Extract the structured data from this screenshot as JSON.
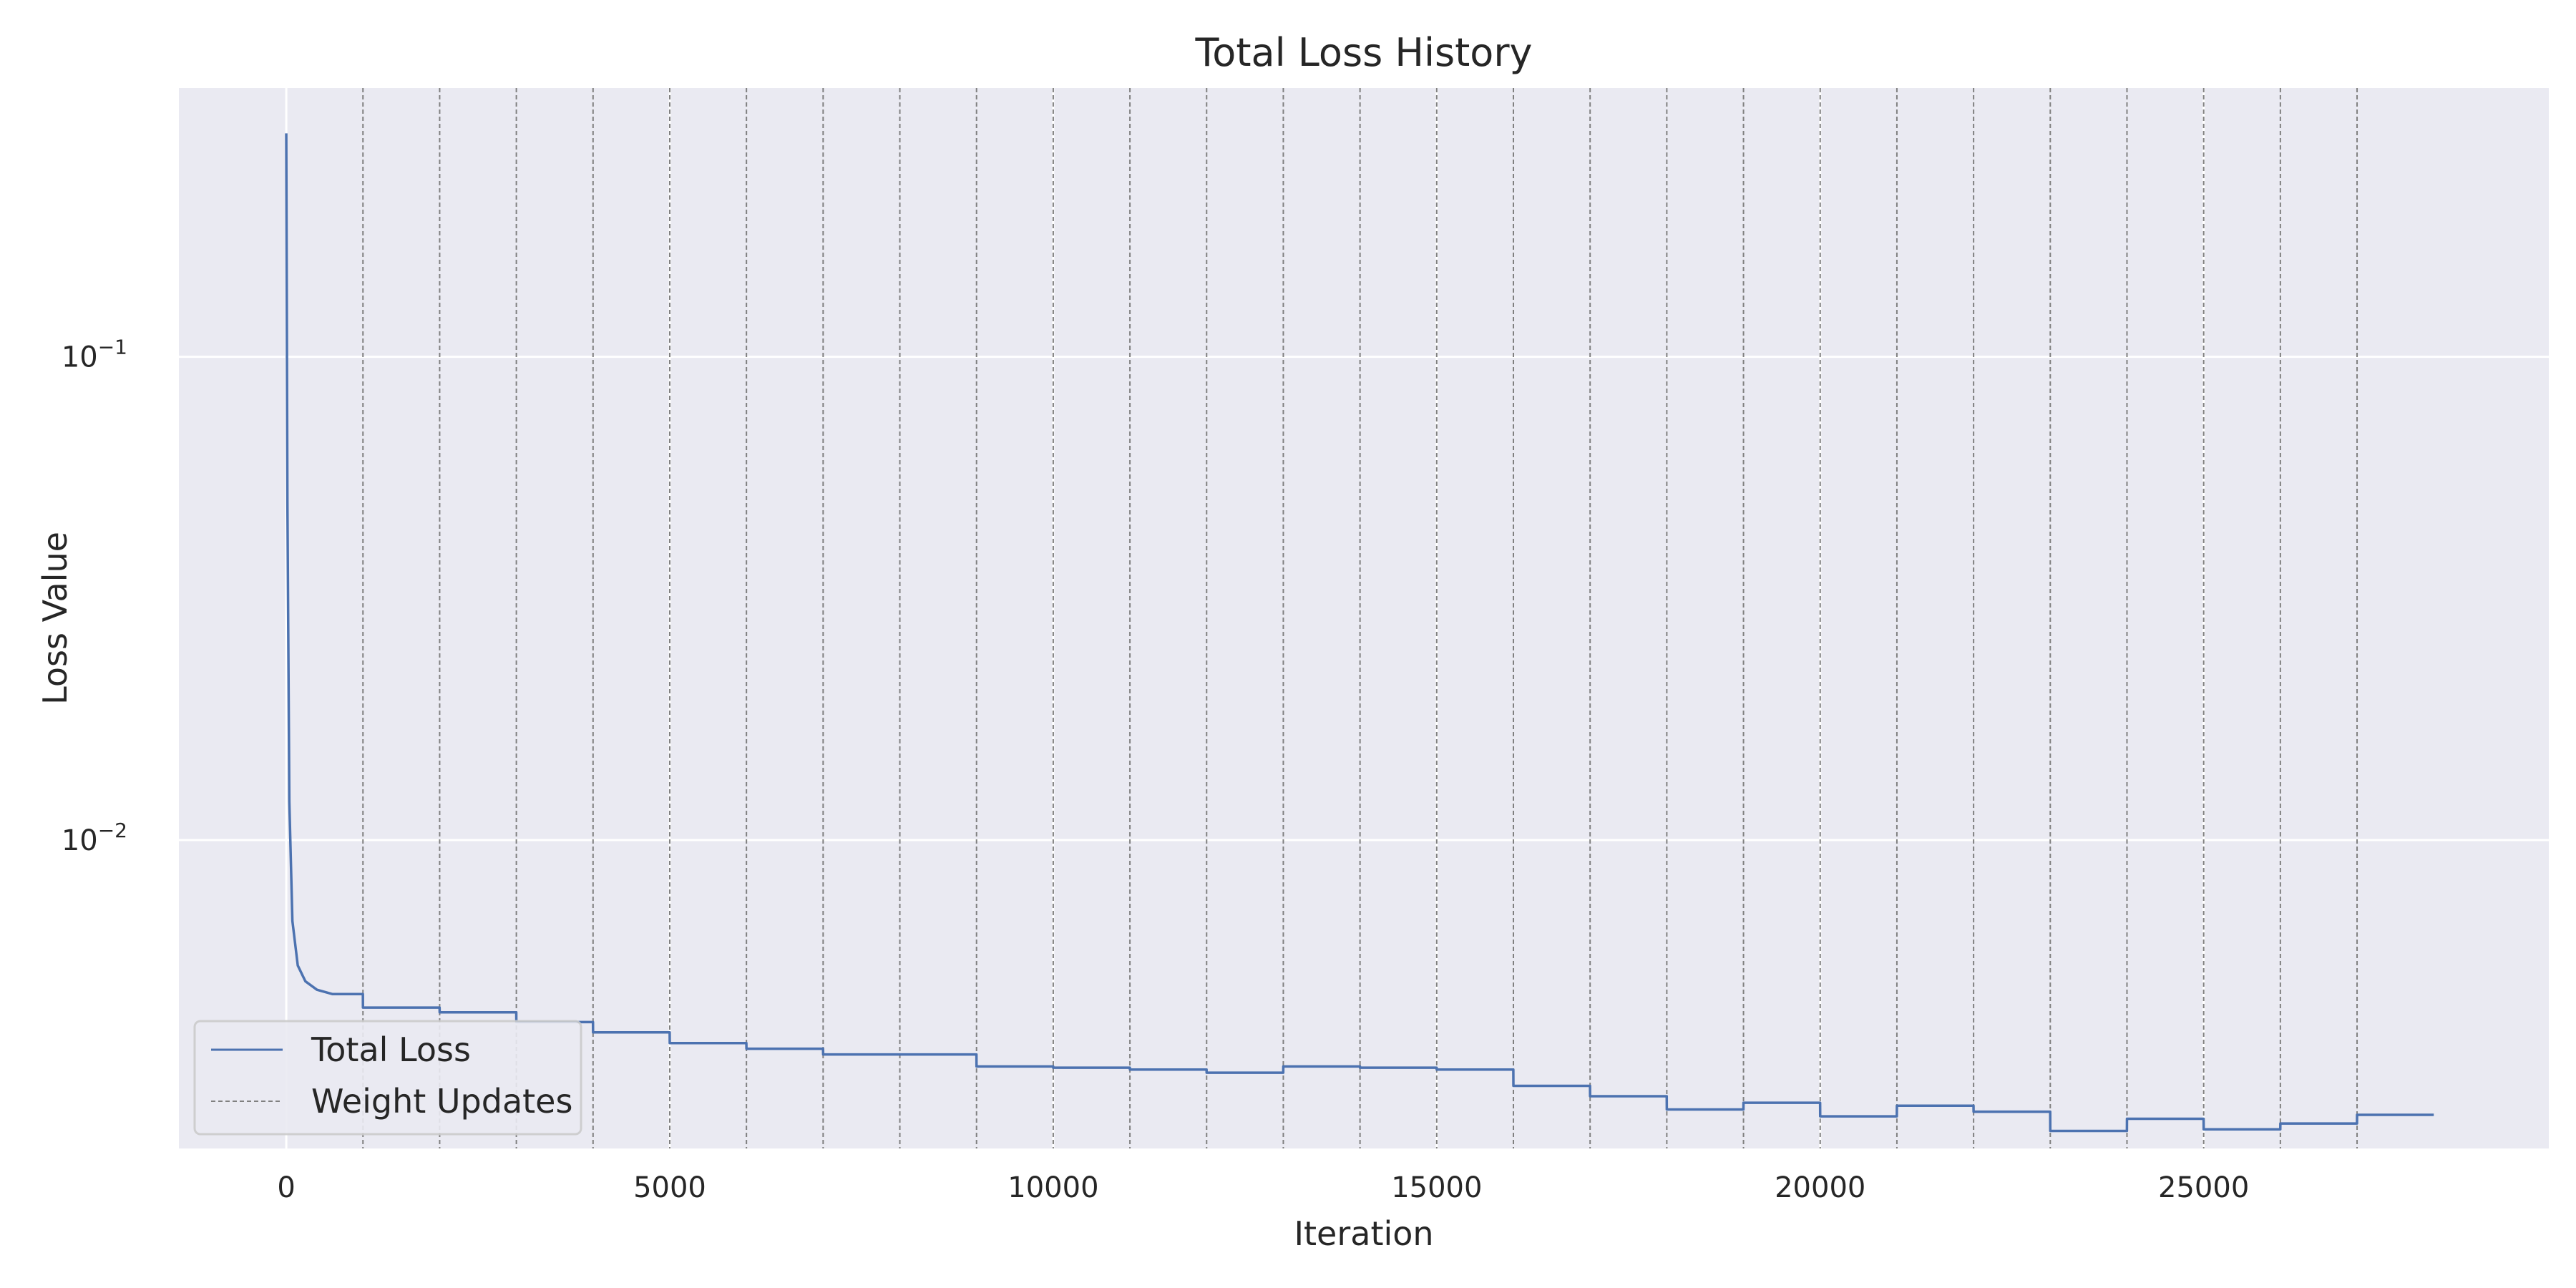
{
  "chart_data": {
    "type": "line",
    "title": "Total Loss History",
    "xlabel": "Iteration",
    "ylabel": "Loss Value",
    "xlim": [
      -1400,
      29500
    ],
    "ylim": [
      0.0023,
      0.36
    ],
    "y_scale": "log",
    "x_ticks": [
      0,
      5000,
      10000,
      15000,
      20000,
      25000
    ],
    "x_tick_labels": [
      "0",
      "5000",
      "10000",
      "15000",
      "20000",
      "25000"
    ],
    "y_ticks": [
      0.1,
      0.01
    ],
    "y_tick_labels": [
      {
        "base": "10",
        "exp": "−1"
      },
      {
        "base": "10",
        "exp": "−2"
      }
    ],
    "grid": true,
    "background": "#eaeaf2",
    "legend_position": "lower-left",
    "series": [
      {
        "name": "Total Loss",
        "color": "#4c72b0",
        "style": "solid",
        "x": [
          0,
          15,
          40,
          80,
          150,
          250,
          400,
          600,
          999,
          1000,
          1999,
          2000,
          2999,
          3000,
          3999,
          4000,
          4999,
          5000,
          5999,
          6000,
          6999,
          7000,
          7999,
          8000,
          8999,
          9000,
          9999,
          10000,
          10999,
          11000,
          11999,
          12000,
          12999,
          13000,
          13999,
          14000,
          14999,
          15000,
          15999,
          16000,
          16999,
          17000,
          17999,
          18000,
          18999,
          19000,
          19999,
          20000,
          20999,
          21000,
          21999,
          22000,
          22999,
          23000,
          23999,
          24000,
          24999,
          25000,
          25999,
          26000,
          26999,
          27000,
          28000
        ],
        "y": [
          0.29,
          0.05,
          0.012,
          0.0068,
          0.0055,
          0.0051,
          0.0049,
          0.0048,
          0.0048,
          0.0045,
          0.0045,
          0.0044,
          0.0044,
          0.0042,
          0.0042,
          0.004,
          0.004,
          0.0038,
          0.0038,
          0.0037,
          0.0037,
          0.0036,
          0.0036,
          0.0036,
          0.0036,
          0.0034,
          0.0034,
          0.00338,
          0.00338,
          0.00335,
          0.00335,
          0.0033,
          0.0033,
          0.0034,
          0.0034,
          0.00338,
          0.00338,
          0.00335,
          0.00335,
          0.0031,
          0.0031,
          0.00295,
          0.00295,
          0.00277,
          0.00277,
          0.00286,
          0.00286,
          0.00268,
          0.00268,
          0.00282,
          0.00282,
          0.00274,
          0.00274,
          0.0025,
          0.0025,
          0.00265,
          0.00265,
          0.00252,
          0.00252,
          0.00259,
          0.00259,
          0.0027,
          0.0027
        ]
      },
      {
        "name": "Weight Updates",
        "color": "#808080",
        "style": "dashed",
        "x_positions": [
          1000,
          2000,
          3000,
          4000,
          5000,
          6000,
          7000,
          8000,
          9000,
          10000,
          11000,
          12000,
          13000,
          14000,
          15000,
          16000,
          17000,
          18000,
          19000,
          20000,
          21000,
          22000,
          23000,
          24000,
          25000,
          26000,
          27000
        ]
      }
    ]
  }
}
